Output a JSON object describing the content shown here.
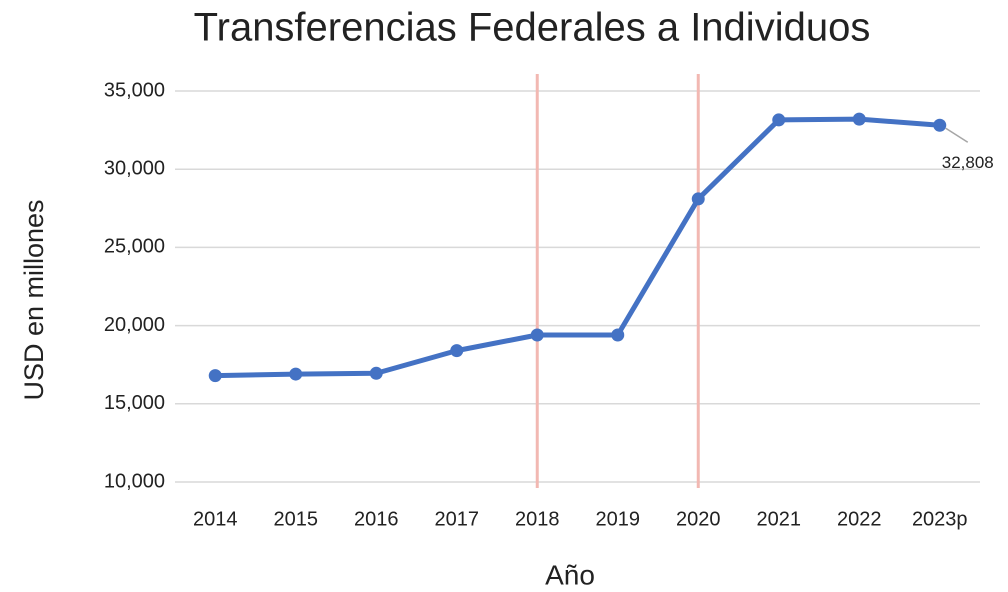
{
  "chart_data": {
    "type": "line",
    "title": "Transferencias Federales a Individuos",
    "x_label": "Año",
    "y_label": "USD en millones",
    "categories": [
      "2014",
      "2015",
      "2016",
      "2017",
      "2018",
      "2019",
      "2020",
      "2021",
      "2022",
      "2023p"
    ],
    "series": [
      {
        "name": "Transferencias",
        "color": "#4472c4",
        "values": [
          16800,
          16900,
          16950,
          18400,
          19400,
          19400,
          28100,
          33150,
          33200,
          32808
        ],
        "value_labels": [
          null,
          null,
          null,
          null,
          null,
          null,
          null,
          null,
          null,
          "32,808"
        ]
      }
    ],
    "ylim": [
      10000,
      35000
    ],
    "yticks": [
      {
        "value": 10000,
        "label": "10,000"
      },
      {
        "value": 15000,
        "label": "15,000"
      },
      {
        "value": 20000,
        "label": "20,000"
      },
      {
        "value": 25000,
        "label": "25,000"
      },
      {
        "value": 30000,
        "label": "30,000"
      },
      {
        "value": 35000,
        "label": "35,000"
      }
    ],
    "grid": true,
    "reference_lines": {
      "x": [
        "2018",
        "2020"
      ],
      "color": "#f2b8b2"
    }
  }
}
